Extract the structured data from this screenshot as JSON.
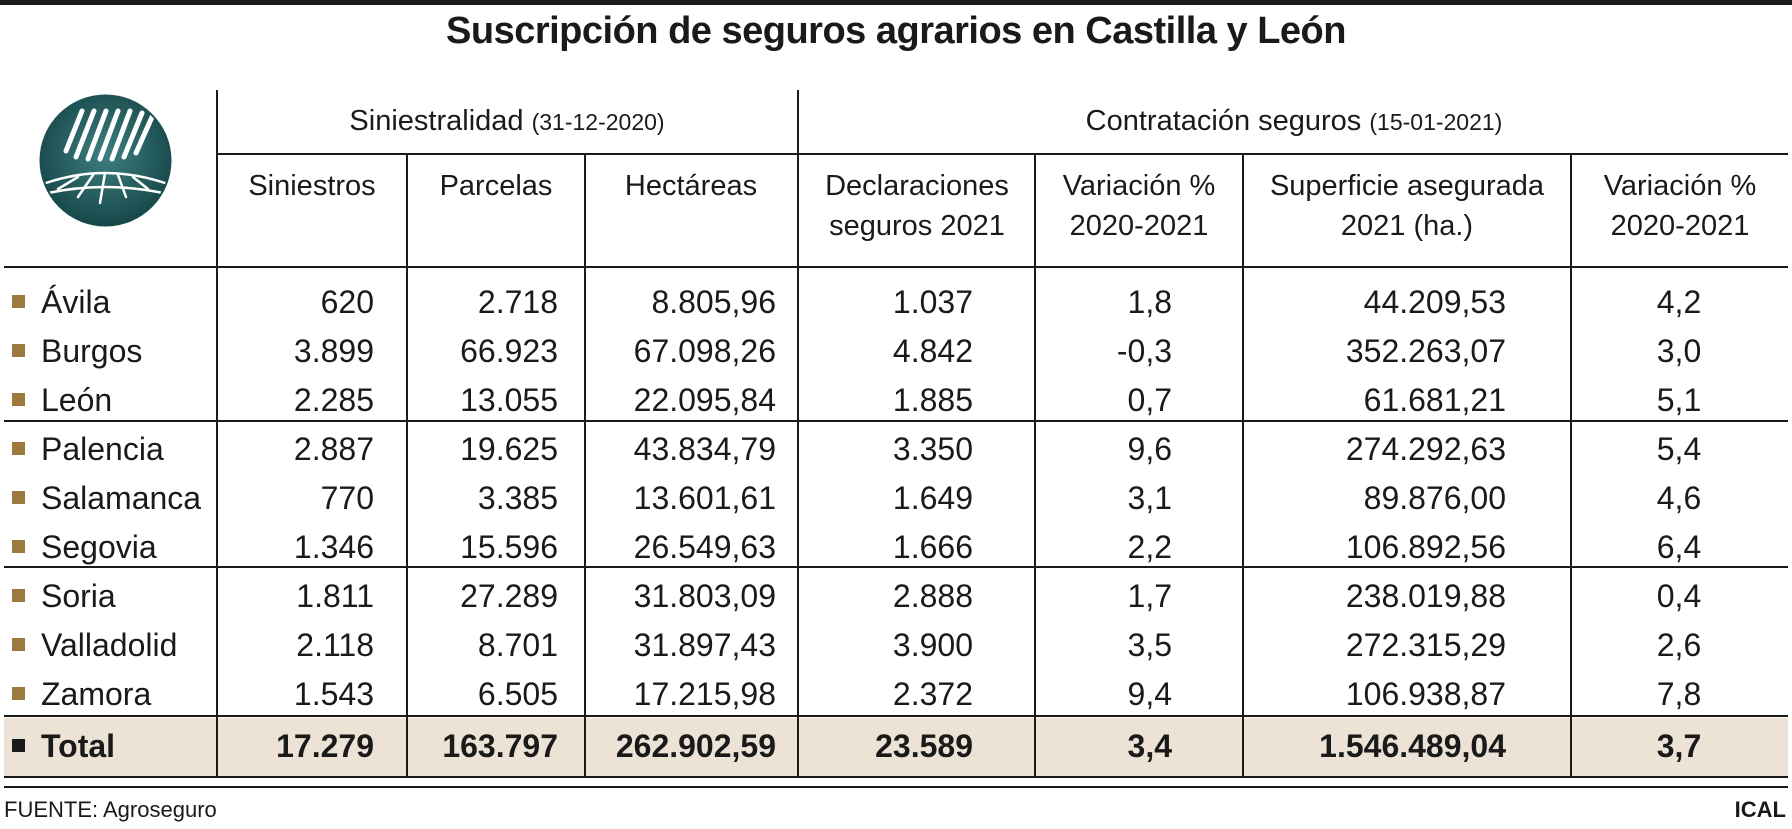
{
  "title": "Suscripción de seguros agrarios en Castilla y León",
  "chart_data": {
    "type": "table",
    "group_headers": [
      {
        "label": "Siniestralidad",
        "note": "(31-12-2020)"
      },
      {
        "label": "Contratación seguros",
        "note": "(15-01-2021)"
      }
    ],
    "columns": [
      [
        "Siniestros"
      ],
      [
        "Parcelas"
      ],
      [
        "Hectáreas"
      ],
      [
        "Declaraciones",
        "seguros 2021"
      ],
      [
        "Variación %",
        "2020-2021"
      ],
      [
        "Superficie asegurada",
        "2021 (ha.)"
      ],
      [
        "Variación %",
        "2020-2021"
      ]
    ],
    "rows": [
      {
        "name": "Ávila",
        "values": [
          "620",
          "2.718",
          "8.805,96",
          "1.037",
          "1,8",
          "44.209,53",
          "4,2"
        ]
      },
      {
        "name": "Burgos",
        "values": [
          "3.899",
          "66.923",
          "67.098,26",
          "4.842",
          "-0,3",
          "352.263,07",
          "3,0"
        ]
      },
      {
        "name": "León",
        "values": [
          "2.285",
          "13.055",
          "22.095,84",
          "1.885",
          "0,7",
          "61.681,21",
          "5,1"
        ]
      },
      {
        "name": "Palencia",
        "values": [
          "2.887",
          "19.625",
          "43.834,79",
          "3.350",
          "9,6",
          "274.292,63",
          "5,4"
        ]
      },
      {
        "name": "Salamanca",
        "values": [
          "770",
          "3.385",
          "13.601,61",
          "1.649",
          "3,1",
          "89.876,00",
          "4,6"
        ]
      },
      {
        "name": "Segovia",
        "values": [
          "1.346",
          "15.596",
          "26.549,63",
          "1.666",
          "2,2",
          "106.892,56",
          "6,4"
        ]
      },
      {
        "name": "Soria",
        "values": [
          "1.811",
          "27.289",
          "31.803,09",
          "2.888",
          "1,7",
          "238.019,88",
          "0,4"
        ]
      },
      {
        "name": "Valladolid",
        "values": [
          "2.118",
          "8.701",
          "31.897,43",
          "3.900",
          "3,5",
          "272.315,29",
          "2,6"
        ]
      },
      {
        "name": "Zamora",
        "values": [
          "1.543",
          "6.505",
          "17.215,98",
          "2.372",
          "9,4",
          "106.938,87",
          "7,8"
        ]
      }
    ],
    "total": {
      "name": "Total",
      "values": [
        "17.279",
        "163.797",
        "262.902,59",
        "23.589",
        "3,4",
        "1.546.489,04",
        "3,7"
      ]
    }
  },
  "source": "FUENTE: Agroseguro",
  "credit": "ICAL",
  "colors": {
    "bullet": "#9c7a3f",
    "total_band": "#ece3d6",
    "logo": "#1f5a5c"
  }
}
